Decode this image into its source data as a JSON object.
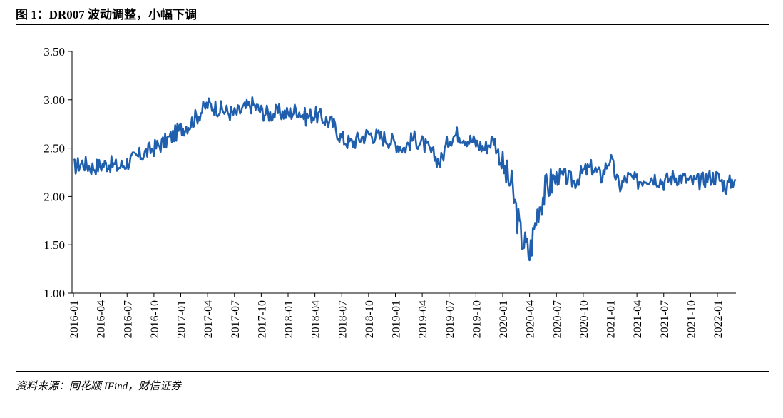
{
  "figure": {
    "title": "图 1：DR007 波动调整，小幅下调",
    "source": "资料来源：同花顺 IFind，财信证券"
  },
  "colors": {
    "line": "#1f5fad",
    "axis": "#000000"
  },
  "chart_data": {
    "type": "line",
    "title": "",
    "xlabel": "",
    "ylabel": "",
    "ylim": [
      1.0,
      3.5
    ],
    "yticks": [
      "1.00",
      "1.50",
      "2.00",
      "2.50",
      "3.00",
      "3.50"
    ],
    "xticks": [
      "2016-01",
      "2016-04",
      "2016-07",
      "2016-10",
      "2017-01",
      "2017-04",
      "2017-07",
      "2017-10",
      "2018-01",
      "2018-04",
      "2018-07",
      "2018-10",
      "2019-01",
      "2019-04",
      "2019-07",
      "2019-10",
      "2020-01",
      "2020-04",
      "2020-07",
      "2020-10",
      "2021-01",
      "2021-04",
      "2021-07",
      "2021-10",
      "2022-01"
    ],
    "grid": false,
    "legend": "none",
    "series": [
      {
        "name": "",
        "x": [
          "2016-01",
          "2016-02",
          "2016-03",
          "2016-04",
          "2016-05",
          "2016-06",
          "2016-07",
          "2016-08",
          "2016-09",
          "2016-10",
          "2016-11",
          "2016-12",
          "2017-01",
          "2017-02",
          "2017-03",
          "2017-04",
          "2017-05",
          "2017-06",
          "2017-07",
          "2017-08",
          "2017-09",
          "2017-10",
          "2017-11",
          "2017-12",
          "2018-01",
          "2018-02",
          "2018-03",
          "2018-04",
          "2018-05",
          "2018-06",
          "2018-07",
          "2018-08",
          "2018-09",
          "2018-10",
          "2018-11",
          "2018-12",
          "2019-01",
          "2019-02",
          "2019-03",
          "2019-04",
          "2019-05",
          "2019-06",
          "2019-07",
          "2019-08",
          "2019-09",
          "2019-10",
          "2019-11",
          "2019-12",
          "2020-01",
          "2020-02",
          "2020-03",
          "2020-04",
          "2020-05",
          "2020-06",
          "2020-07",
          "2020-08",
          "2020-09",
          "2020-10",
          "2020-11",
          "2020-12",
          "2021-01",
          "2021-02",
          "2021-03",
          "2021-04",
          "2021-05",
          "2021-06",
          "2021-07",
          "2021-08",
          "2021-09",
          "2021-10",
          "2021-11",
          "2021-12",
          "2022-01",
          "2022-02",
          "2022-03"
        ],
        "values": [
          2.3,
          2.35,
          2.3,
          2.32,
          2.34,
          2.3,
          2.35,
          2.4,
          2.45,
          2.5,
          2.55,
          2.62,
          2.7,
          2.75,
          2.85,
          2.95,
          2.92,
          2.88,
          2.85,
          2.9,
          2.95,
          2.88,
          2.85,
          2.87,
          2.85,
          2.9,
          2.82,
          2.85,
          2.8,
          2.75,
          2.6,
          2.55,
          2.6,
          2.65,
          2.62,
          2.6,
          2.55,
          2.5,
          2.6,
          2.55,
          2.45,
          2.35,
          2.6,
          2.65,
          2.6,
          2.55,
          2.5,
          2.6,
          2.3,
          2.1,
          1.6,
          1.4,
          1.9,
          2.1,
          2.2,
          2.2,
          2.15,
          2.25,
          2.3,
          2.2,
          2.4,
          2.1,
          2.2,
          2.15,
          2.2,
          2.2,
          2.15,
          2.2,
          2.2,
          2.15,
          2.15,
          2.2,
          2.2,
          2.1,
          2.2
        ]
      }
    ]
  }
}
